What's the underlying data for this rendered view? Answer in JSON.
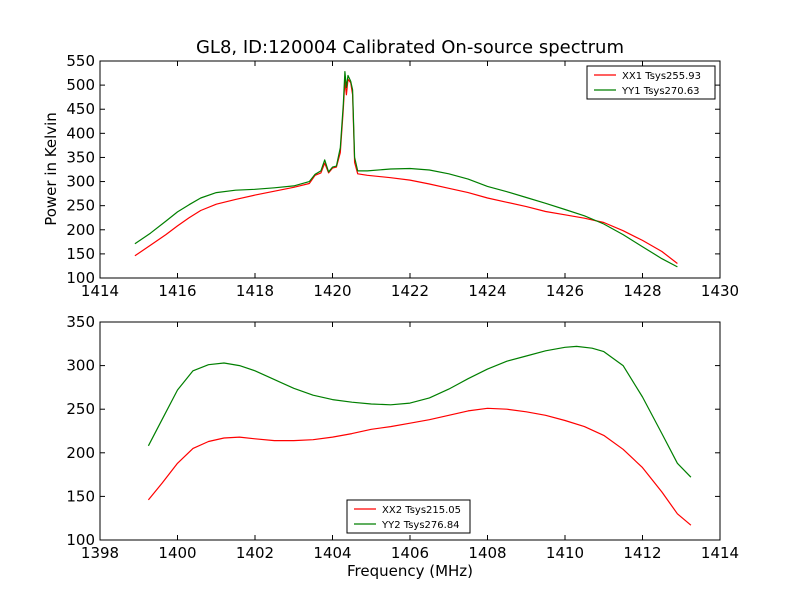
{
  "title": "GL8, ID:120004 Calibrated On-source spectrum",
  "colors": {
    "red": "#ff0000",
    "green": "#007f00"
  },
  "chart_data": [
    {
      "type": "line",
      "title": "GL8, ID:120004 Calibrated On-source spectrum",
      "xlabel": "",
      "ylabel": "Power in Kelvin",
      "xlim": [
        1414,
        1430
      ],
      "ylim": [
        100,
        550
      ],
      "xticks": [
        1414,
        1416,
        1418,
        1420,
        1422,
        1424,
        1426,
        1428,
        1430
      ],
      "yticks": [
        100,
        150,
        200,
        250,
        300,
        350,
        400,
        450,
        500,
        550
      ],
      "legend_position": "top-right",
      "series": [
        {
          "name": "XX1 Tsys255.93",
          "color": "#ff0000",
          "points": [
            [
              1414.9,
              146
            ],
            [
              1415.3,
              168
            ],
            [
              1415.7,
              190
            ],
            [
              1416.0,
              208
            ],
            [
              1416.3,
              225
            ],
            [
              1416.6,
              240
            ],
            [
              1417.0,
              253
            ],
            [
              1417.5,
              263
            ],
            [
              1418.0,
              272
            ],
            [
              1418.5,
              280
            ],
            [
              1419.0,
              288
            ],
            [
              1419.4,
              296
            ],
            [
              1419.55,
              313
            ],
            [
              1419.7,
              318
            ],
            [
              1419.8,
              338
            ],
            [
              1419.9,
              318
            ],
            [
              1420.0,
              328
            ],
            [
              1420.1,
              330
            ],
            [
              1420.2,
              360
            ],
            [
              1420.28,
              450
            ],
            [
              1420.32,
              510
            ],
            [
              1420.36,
              480
            ],
            [
              1420.4,
              512
            ],
            [
              1420.47,
              505
            ],
            [
              1420.52,
              480
            ],
            [
              1420.57,
              340
            ],
            [
              1420.65,
              316
            ],
            [
              1420.9,
              313
            ],
            [
              1421.5,
              308
            ],
            [
              1422.0,
              303
            ],
            [
              1422.5,
              295
            ],
            [
              1423.0,
              286
            ],
            [
              1423.5,
              277
            ],
            [
              1424.0,
              266
            ],
            [
              1424.5,
              257
            ],
            [
              1425.0,
              248
            ],
            [
              1425.5,
              238
            ],
            [
              1426.0,
              231
            ],
            [
              1426.5,
              224
            ],
            [
              1427.0,
              215
            ],
            [
              1427.5,
              198
            ],
            [
              1428.0,
              178
            ],
            [
              1428.5,
              155
            ],
            [
              1428.9,
              130
            ]
          ]
        },
        {
          "name": "YY1 Tsys270.63",
          "color": "#007f00",
          "points": [
            [
              1414.9,
              171
            ],
            [
              1415.3,
              193
            ],
            [
              1415.7,
              218
            ],
            [
              1416.0,
              237
            ],
            [
              1416.3,
              252
            ],
            [
              1416.6,
              266
            ],
            [
              1417.0,
              277
            ],
            [
              1417.5,
              282
            ],
            [
              1418.0,
              284
            ],
            [
              1418.5,
              287
            ],
            [
              1419.0,
              291
            ],
            [
              1419.4,
              300
            ],
            [
              1419.55,
              315
            ],
            [
              1419.7,
              322
            ],
            [
              1419.8,
              345
            ],
            [
              1419.9,
              320
            ],
            [
              1420.0,
              330
            ],
            [
              1420.1,
              332
            ],
            [
              1420.2,
              370
            ],
            [
              1420.28,
              460
            ],
            [
              1420.32,
              528
            ],
            [
              1420.36,
              495
            ],
            [
              1420.4,
              520
            ],
            [
              1420.47,
              508
            ],
            [
              1420.52,
              490
            ],
            [
              1420.57,
              350
            ],
            [
              1420.65,
              322
            ],
            [
              1420.9,
              322
            ],
            [
              1421.5,
              326
            ],
            [
              1422.0,
              327
            ],
            [
              1422.5,
              324
            ],
            [
              1423.0,
              316
            ],
            [
              1423.5,
              305
            ],
            [
              1424.0,
              290
            ],
            [
              1424.5,
              279
            ],
            [
              1425.0,
              267
            ],
            [
              1425.5,
              255
            ],
            [
              1426.0,
              242
            ],
            [
              1426.5,
              229
            ],
            [
              1427.0,
              212
            ],
            [
              1427.5,
              190
            ],
            [
              1428.0,
              165
            ],
            [
              1428.5,
              140
            ],
            [
              1428.9,
              123
            ]
          ]
        }
      ]
    },
    {
      "type": "line",
      "title": "",
      "xlabel": "Frequency (MHz)",
      "ylabel": "",
      "xlim": [
        1398,
        1414
      ],
      "ylim": [
        100,
        350
      ],
      "xticks": [
        1398,
        1400,
        1402,
        1404,
        1406,
        1408,
        1410,
        1412,
        1414
      ],
      "yticks": [
        100,
        150,
        200,
        250,
        300,
        350
      ],
      "legend_position": "bottom-center",
      "series": [
        {
          "name": "XX2 Tsys215.05",
          "color": "#ff0000",
          "points": [
            [
              1399.25,
              146
            ],
            [
              1399.6,
              165
            ],
            [
              1400.0,
              188
            ],
            [
              1400.4,
              205
            ],
            [
              1400.8,
              213
            ],
            [
              1401.2,
              217
            ],
            [
              1401.6,
              218
            ],
            [
              1402.0,
              216
            ],
            [
              1402.5,
              214
            ],
            [
              1403.0,
              214
            ],
            [
              1403.5,
              215
            ],
            [
              1404.0,
              218
            ],
            [
              1404.5,
              222
            ],
            [
              1405.0,
              227
            ],
            [
              1405.5,
              230
            ],
            [
              1406.0,
              234
            ],
            [
              1406.5,
              238
            ],
            [
              1407.0,
              243
            ],
            [
              1407.5,
              248
            ],
            [
              1408.0,
              251
            ],
            [
              1408.5,
              250
            ],
            [
              1409.0,
              247
            ],
            [
              1409.5,
              243
            ],
            [
              1410.0,
              237
            ],
            [
              1410.5,
              230
            ],
            [
              1411.0,
              220
            ],
            [
              1411.5,
              204
            ],
            [
              1412.0,
              183
            ],
            [
              1412.5,
              155
            ],
            [
              1412.9,
              130
            ],
            [
              1413.25,
              117
            ]
          ]
        },
        {
          "name": "YY2 Tsys276.84",
          "color": "#007f00",
          "points": [
            [
              1399.25,
              208
            ],
            [
              1399.6,
              238
            ],
            [
              1400.0,
              272
            ],
            [
              1400.4,
              294
            ],
            [
              1400.8,
              301
            ],
            [
              1401.2,
              303
            ],
            [
              1401.6,
              300
            ],
            [
              1402.0,
              294
            ],
            [
              1402.5,
              284
            ],
            [
              1403.0,
              274
            ],
            [
              1403.5,
              266
            ],
            [
              1404.0,
              261
            ],
            [
              1404.5,
              258
            ],
            [
              1405.0,
              256
            ],
            [
              1405.5,
              255
            ],
            [
              1406.0,
              257
            ],
            [
              1406.5,
              263
            ],
            [
              1407.0,
              273
            ],
            [
              1407.5,
              285
            ],
            [
              1408.0,
              296
            ],
            [
              1408.5,
              305
            ],
            [
              1409.0,
              311
            ],
            [
              1409.5,
              317
            ],
            [
              1410.0,
              321
            ],
            [
              1410.3,
              322
            ],
            [
              1410.7,
              320
            ],
            [
              1411.0,
              316
            ],
            [
              1411.5,
              300
            ],
            [
              1412.0,
              264
            ],
            [
              1412.5,
              222
            ],
            [
              1412.9,
              188
            ],
            [
              1413.25,
              172
            ]
          ]
        }
      ]
    }
  ]
}
